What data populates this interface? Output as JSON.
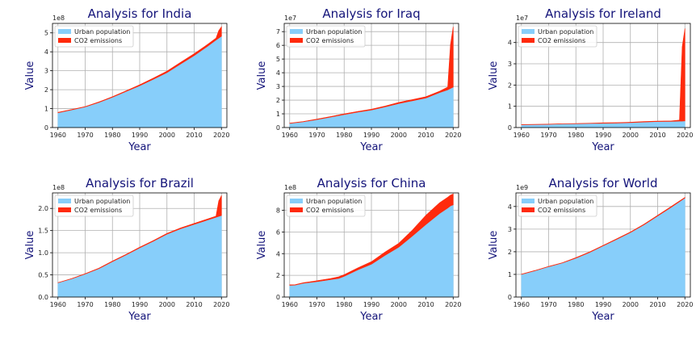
{
  "chart_data": [
    {
      "type": "area",
      "title": "Analysis for India",
      "xlabel": "Year",
      "ylabel": "Value",
      "multiplier": "1e8",
      "xlim": [
        1958,
        2022
      ],
      "ylim": [
        0,
        5.5
      ],
      "xticks": [
        "1960",
        "1970",
        "1980",
        "1990",
        "2000",
        "2010",
        "2020"
      ],
      "yticks": [
        "0",
        "1",
        "2",
        "3",
        "4",
        "5"
      ],
      "legend": "top-left",
      "grid": true,
      "x": [
        1960,
        1965,
        1970,
        1975,
        1980,
        1985,
        1990,
        1995,
        2000,
        2005,
        2010,
        2015,
        2018,
        2019,
        2020
      ],
      "series": [
        {
          "name": "Urban population",
          "color": "#87cefa",
          "values": [
            0.78,
            0.93,
            1.09,
            1.32,
            1.6,
            1.9,
            2.21,
            2.55,
            2.9,
            3.35,
            3.8,
            4.3,
            4.62,
            4.72,
            4.82
          ]
        },
        {
          "name": "CO2 emissions",
          "color": "#ff2a0d",
          "values": [
            0.02,
            0.02,
            0.02,
            0.03,
            0.03,
            0.04,
            0.05,
            0.06,
            0.08,
            0.09,
            0.1,
            0.1,
            0.1,
            0.4,
            0.5
          ]
        }
      ]
    },
    {
      "type": "area",
      "title": "Analysis for Iraq",
      "xlabel": "Year",
      "ylabel": "Value",
      "multiplier": "1e7",
      "xlim": [
        1958,
        2022
      ],
      "ylim": [
        0,
        7.6
      ],
      "xticks": [
        "1960",
        "1970",
        "1980",
        "1990",
        "2000",
        "2010",
        "2020"
      ],
      "yticks": [
        "0",
        "1",
        "2",
        "3",
        "4",
        "5",
        "6",
        "7"
      ],
      "legend": "top-left",
      "grid": true,
      "x": [
        1960,
        1965,
        1970,
        1975,
        1980,
        1985,
        1990,
        1995,
        2000,
        2005,
        2010,
        2015,
        2018,
        2019,
        2020
      ],
      "series": [
        {
          "name": "Urban population",
          "color": "#87cefa",
          "values": [
            0.3,
            0.42,
            0.58,
            0.76,
            0.95,
            1.12,
            1.28,
            1.5,
            1.75,
            1.95,
            2.15,
            2.55,
            2.75,
            2.85,
            2.95
          ]
        },
        {
          "name": "CO2 emissions",
          "color": "#ff2a0d",
          "values": [
            0.02,
            0.02,
            0.03,
            0.04,
            0.05,
            0.06,
            0.06,
            0.07,
            0.08,
            0.09,
            0.1,
            0.1,
            0.2,
            3.2,
            4.4
          ]
        }
      ]
    },
    {
      "type": "area",
      "title": "Analysis for Ireland",
      "xlabel": "Year",
      "ylabel": "Value",
      "multiplier": "1e7",
      "xlim": [
        1958,
        2022
      ],
      "ylim": [
        0,
        4.9
      ],
      "xticks": [
        "1960",
        "1970",
        "1980",
        "1990",
        "2000",
        "2010",
        "2020"
      ],
      "yticks": [
        "0",
        "1",
        "2",
        "3",
        "4"
      ],
      "legend": "top-left",
      "grid": true,
      "x": [
        1960,
        1965,
        1970,
        1975,
        1980,
        1985,
        1990,
        1995,
        2000,
        2005,
        2010,
        2015,
        2018,
        2019,
        2020
      ],
      "series": [
        {
          "name": "Urban population",
          "color": "#87cefa",
          "values": [
            0.13,
            0.14,
            0.15,
            0.17,
            0.18,
            0.19,
            0.2,
            0.21,
            0.23,
            0.26,
            0.28,
            0.29,
            0.3,
            0.3,
            0.31
          ]
        },
        {
          "name": "CO2 emissions",
          "color": "#ff2a0d",
          "values": [
            0.01,
            0.01,
            0.01,
            0.01,
            0.01,
            0.01,
            0.02,
            0.02,
            0.02,
            0.02,
            0.02,
            0.02,
            0.05,
            3.5,
            4.35
          ]
        }
      ]
    },
    {
      "type": "area",
      "title": "Analysis for Brazil",
      "xlabel": "Year",
      "ylabel": "Value",
      "multiplier": "1e8",
      "xlim": [
        1958,
        2022
      ],
      "ylim": [
        0,
        2.35
      ],
      "xticks": [
        "1960",
        "1970",
        "1980",
        "1990",
        "2000",
        "2010",
        "2020"
      ],
      "yticks": [
        "0.0",
        "0.5",
        "1.0",
        "1.5",
        "2.0"
      ],
      "legend": "top-left",
      "grid": true,
      "x": [
        1960,
        1965,
        1970,
        1975,
        1980,
        1985,
        1990,
        1995,
        2000,
        2005,
        2010,
        2015,
        2018,
        2019,
        2020
      ],
      "series": [
        {
          "name": "Urban population",
          "color": "#87cefa",
          "values": [
            0.32,
            0.41,
            0.52,
            0.64,
            0.8,
            0.95,
            1.11,
            1.26,
            1.42,
            1.54,
            1.64,
            1.74,
            1.8,
            1.82,
            1.84
          ]
        },
        {
          "name": "CO2 emissions",
          "color": "#ff2a0d",
          "values": [
            0.005,
            0.006,
            0.008,
            0.01,
            0.012,
            0.012,
            0.014,
            0.016,
            0.018,
            0.02,
            0.022,
            0.024,
            0.025,
            0.35,
            0.45
          ]
        }
      ]
    },
    {
      "type": "area",
      "title": "Analysis for China",
      "xlabel": "Year",
      "ylabel": "Value",
      "multiplier": "1e8",
      "xlim": [
        1958,
        2022
      ],
      "ylim": [
        0,
        9.6
      ],
      "xticks": [
        "1960",
        "1970",
        "1980",
        "1990",
        "2000",
        "2010",
        "2020"
      ],
      "yticks": [
        "0",
        "2",
        "4",
        "6",
        "8"
      ],
      "legend": "top-left",
      "grid": true,
      "x": [
        1960,
        1962,
        1965,
        1970,
        1975,
        1978,
        1980,
        1985,
        1990,
        1995,
        2000,
        2005,
        2010,
        2015,
        2018,
        2019,
        2020
      ],
      "series": [
        {
          "name": "Urban population",
          "color": "#87cefa",
          "values": [
            1.08,
            1.1,
            1.27,
            1.42,
            1.6,
            1.72,
            1.91,
            2.5,
            3.02,
            3.84,
            4.59,
            5.62,
            6.69,
            7.7,
            8.2,
            8.4,
            8.5
          ]
        },
        {
          "name": "CO2 emissions",
          "color": "#ff2a0d",
          "values": [
            0.05,
            0.04,
            0.05,
            0.08,
            0.11,
            0.15,
            0.15,
            0.19,
            0.24,
            0.31,
            0.36,
            0.54,
            0.85,
            0.99,
            1.0,
            1.0,
            1.0
          ]
        }
      ]
    },
    {
      "type": "area",
      "title": "Analysis for World",
      "xlabel": "Year",
      "ylabel": "Value",
      "multiplier": "1e9",
      "xlim": [
        1958,
        2022
      ],
      "ylim": [
        0,
        4.6
      ],
      "xticks": [
        "1960",
        "1970",
        "1980",
        "1990",
        "2000",
        "2010",
        "2020"
      ],
      "yticks": [
        "0",
        "1",
        "2",
        "3",
        "4"
      ],
      "legend": "top-left",
      "grid": true,
      "x": [
        1960,
        1965,
        1970,
        1975,
        1980,
        1985,
        1990,
        1995,
        2000,
        2005,
        2010,
        2015,
        2020
      ],
      "series": [
        {
          "name": "Urban population",
          "color": "#87cefa",
          "values": [
            1.0,
            1.16,
            1.34,
            1.5,
            1.72,
            1.97,
            2.26,
            2.55,
            2.85,
            3.19,
            3.58,
            3.97,
            4.37
          ]
        },
        {
          "name": "CO2 emissions",
          "color": "#ff2a0d",
          "values": [
            0.01,
            0.012,
            0.015,
            0.017,
            0.019,
            0.02,
            0.022,
            0.023,
            0.025,
            0.029,
            0.033,
            0.035,
            0.035
          ]
        }
      ]
    }
  ]
}
